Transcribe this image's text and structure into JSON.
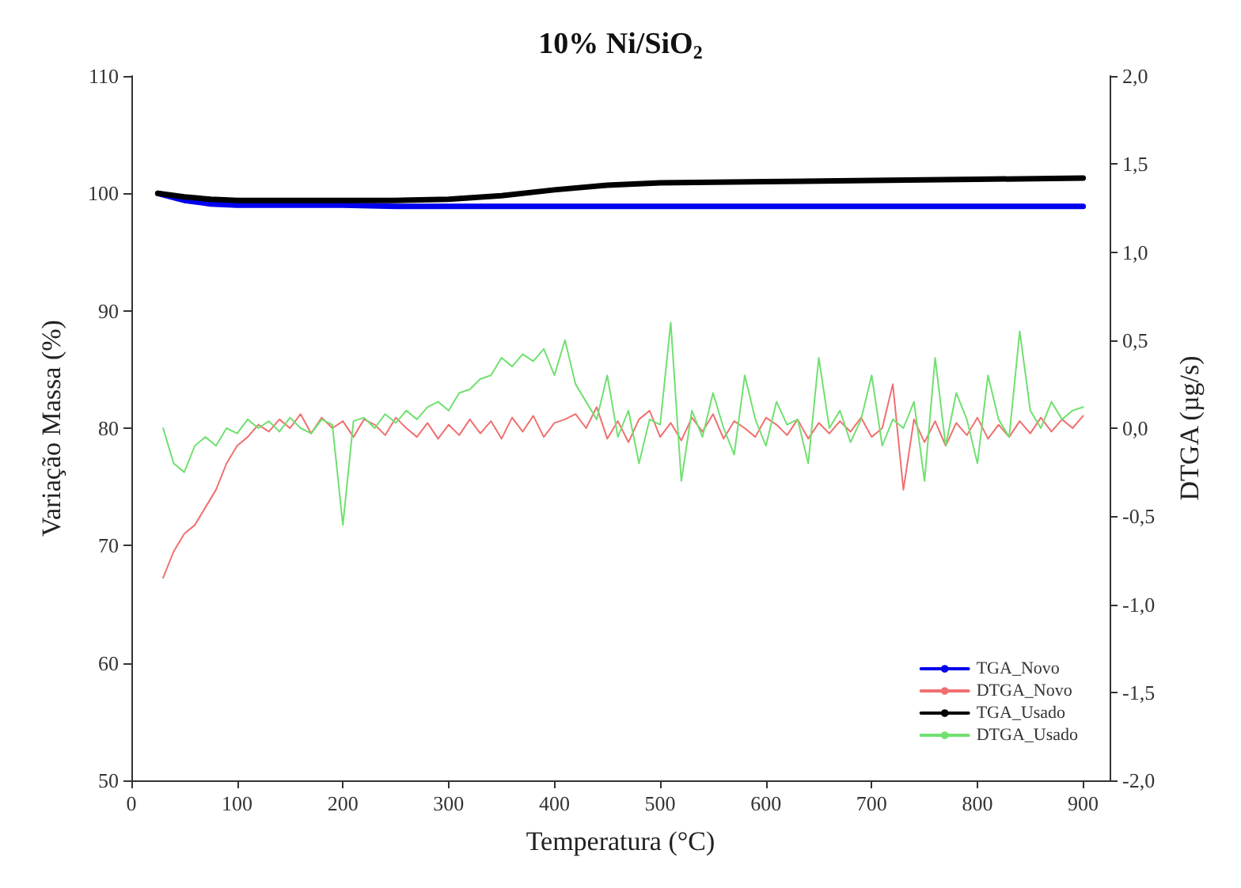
{
  "chart_data": {
    "type": "line",
    "title": "10% Ni/SiO$_{2}$",
    "xlabel": "Temperatura (°C)",
    "ylabel": "Variação Massa (%)",
    "y2label": "DTGA (µg/s)",
    "xlim": [
      0,
      925
    ],
    "xticks": [
      0,
      100,
      200,
      300,
      400,
      500,
      600,
      700,
      800,
      900
    ],
    "ylim": [
      50,
      110
    ],
    "yticks": [
      50,
      60,
      70,
      80,
      90,
      100,
      110
    ],
    "y2lim": [
      -2,
      2
    ],
    "y2ticks": [
      {
        "value": -2,
        "label": "-2,0"
      },
      {
        "value": -1.5,
        "label": "-1,5"
      },
      {
        "value": -1,
        "label": "-1,0"
      },
      {
        "value": -0.5,
        "label": "-0,5"
      },
      {
        "value": 0,
        "label": "0,0"
      },
      {
        "value": 0.5,
        "label": "0,5"
      },
      {
        "value": 1,
        "label": "1,0"
      },
      {
        "value": 1.5,
        "label": "1,5"
      },
      {
        "value": 2,
        "label": "2,0"
      }
    ],
    "grid": false,
    "legend": "bottom right",
    "marker": "none",
    "series": [
      {
        "name": "TGA_Novo",
        "color": "#0000ee",
        "x": [
          25,
          50,
          75,
          100,
          150,
          200,
          250,
          300,
          350,
          400,
          450,
          500,
          600,
          700,
          800,
          900
        ],
        "values": [
          100,
          99.4,
          99.1,
          99.0,
          99.0,
          99.0,
          98.9,
          98.9,
          98.9,
          98.9,
          98.9,
          98.9,
          98.9,
          98.9,
          98.9,
          98.9
        ]
      },
      {
        "name": "DTGA_Novo",
        "color": "#f07070",
        "axis": "y2",
        "x": [
          30,
          40,
          50,
          60,
          70,
          80,
          90,
          100,
          110,
          120,
          130,
          140,
          150,
          160,
          170,
          180,
          190,
          200,
          210,
          220,
          230,
          240,
          250,
          260,
          270,
          280,
          290,
          300,
          310,
          320,
          330,
          340,
          350,
          360,
          370,
          380,
          390,
          400,
          410,
          420,
          430,
          440,
          450,
          460,
          470,
          480,
          490,
          500,
          510,
          520,
          530,
          540,
          550,
          560,
          570,
          580,
          590,
          600,
          610,
          620,
          630,
          640,
          650,
          660,
          670,
          680,
          690,
          700,
          710,
          720,
          730,
          740,
          750,
          760,
          770,
          780,
          790,
          800,
          810,
          820,
          830,
          840,
          850,
          860,
          870,
          880,
          890,
          900
        ],
        "values": [
          -0.85,
          -0.7,
          -0.6,
          -0.55,
          -0.45,
          -0.35,
          -0.2,
          -0.1,
          -0.05,
          0.02,
          -0.02,
          0.05,
          0.0,
          0.08,
          -0.03,
          0.06,
          0.0,
          0.04,
          -0.05,
          0.05,
          0.02,
          -0.04,
          0.06,
          0.0,
          -0.05,
          0.03,
          -0.06,
          0.02,
          -0.04,
          0.05,
          -0.03,
          0.04,
          -0.06,
          0.06,
          -0.02,
          0.07,
          -0.05,
          0.03,
          0.05,
          0.08,
          0.0,
          0.12,
          -0.06,
          0.04,
          -0.08,
          0.05,
          0.1,
          -0.05,
          0.03,
          -0.07,
          0.06,
          -0.02,
          0.08,
          -0.06,
          0.04,
          0.0,
          -0.05,
          0.06,
          0.02,
          -0.04,
          0.05,
          -0.06,
          0.03,
          -0.03,
          0.04,
          -0.02,
          0.06,
          -0.05,
          0.0,
          0.25,
          -0.35,
          0.05,
          -0.08,
          0.04,
          -0.1,
          0.03,
          -0.04,
          0.06,
          -0.06,
          0.02,
          -0.05,
          0.04,
          -0.03,
          0.06,
          -0.02,
          0.05,
          0.0,
          0.07
        ]
      },
      {
        "name": "TGA_Usado",
        "color": "#000000",
        "x": [
          25,
          50,
          75,
          100,
          150,
          200,
          250,
          300,
          350,
          400,
          450,
          500,
          600,
          700,
          800,
          900
        ],
        "values": [
          100,
          99.7,
          99.5,
          99.4,
          99.4,
          99.4,
          99.4,
          99.5,
          99.8,
          100.3,
          100.7,
          100.9,
          101.0,
          101.1,
          101.2,
          101.3
        ]
      },
      {
        "name": "DTGA_Usado",
        "color": "#70e070",
        "axis": "y2",
        "x": [
          30,
          40,
          50,
          60,
          70,
          80,
          90,
          100,
          110,
          120,
          130,
          140,
          150,
          160,
          170,
          180,
          190,
          200,
          210,
          220,
          230,
          240,
          250,
          260,
          270,
          280,
          290,
          300,
          310,
          320,
          330,
          340,
          350,
          360,
          370,
          380,
          390,
          400,
          410,
          420,
          430,
          440,
          450,
          460,
          470,
          480,
          490,
          500,
          510,
          520,
          530,
          540,
          550,
          560,
          570,
          580,
          590,
          600,
          610,
          620,
          630,
          640,
          650,
          660,
          670,
          680,
          690,
          700,
          710,
          720,
          730,
          740,
          750,
          760,
          770,
          780,
          790,
          800,
          810,
          820,
          830,
          840,
          850,
          860,
          870,
          880,
          890,
          900
        ],
        "values": [
          0.0,
          -0.2,
          -0.25,
          -0.1,
          -0.05,
          -0.1,
          0.0,
          -0.03,
          0.05,
          0.0,
          0.04,
          -0.02,
          0.06,
          0.0,
          -0.03,
          0.05,
          0.02,
          -0.55,
          0.04,
          0.06,
          0.0,
          0.08,
          0.03,
          0.1,
          0.05,
          0.12,
          0.15,
          0.1,
          0.2,
          0.22,
          0.28,
          0.3,
          0.4,
          0.35,
          0.42,
          0.38,
          0.45,
          0.3,
          0.5,
          0.25,
          0.15,
          0.05,
          0.3,
          -0.05,
          0.1,
          -0.2,
          0.05,
          0.02,
          0.6,
          -0.3,
          0.1,
          -0.05,
          0.2,
          0.0,
          -0.15,
          0.3,
          0.05,
          -0.1,
          0.15,
          0.02,
          0.05,
          -0.2,
          0.4,
          0.0,
          0.1,
          -0.08,
          0.05,
          0.3,
          -0.1,
          0.05,
          0.0,
          0.15,
          -0.3,
          0.4,
          -0.1,
          0.2,
          0.05,
          -0.2,
          0.3,
          0.05,
          -0.05,
          0.55,
          0.1,
          0.0,
          0.15,
          0.05,
          0.1,
          0.12
        ]
      }
    ]
  }
}
